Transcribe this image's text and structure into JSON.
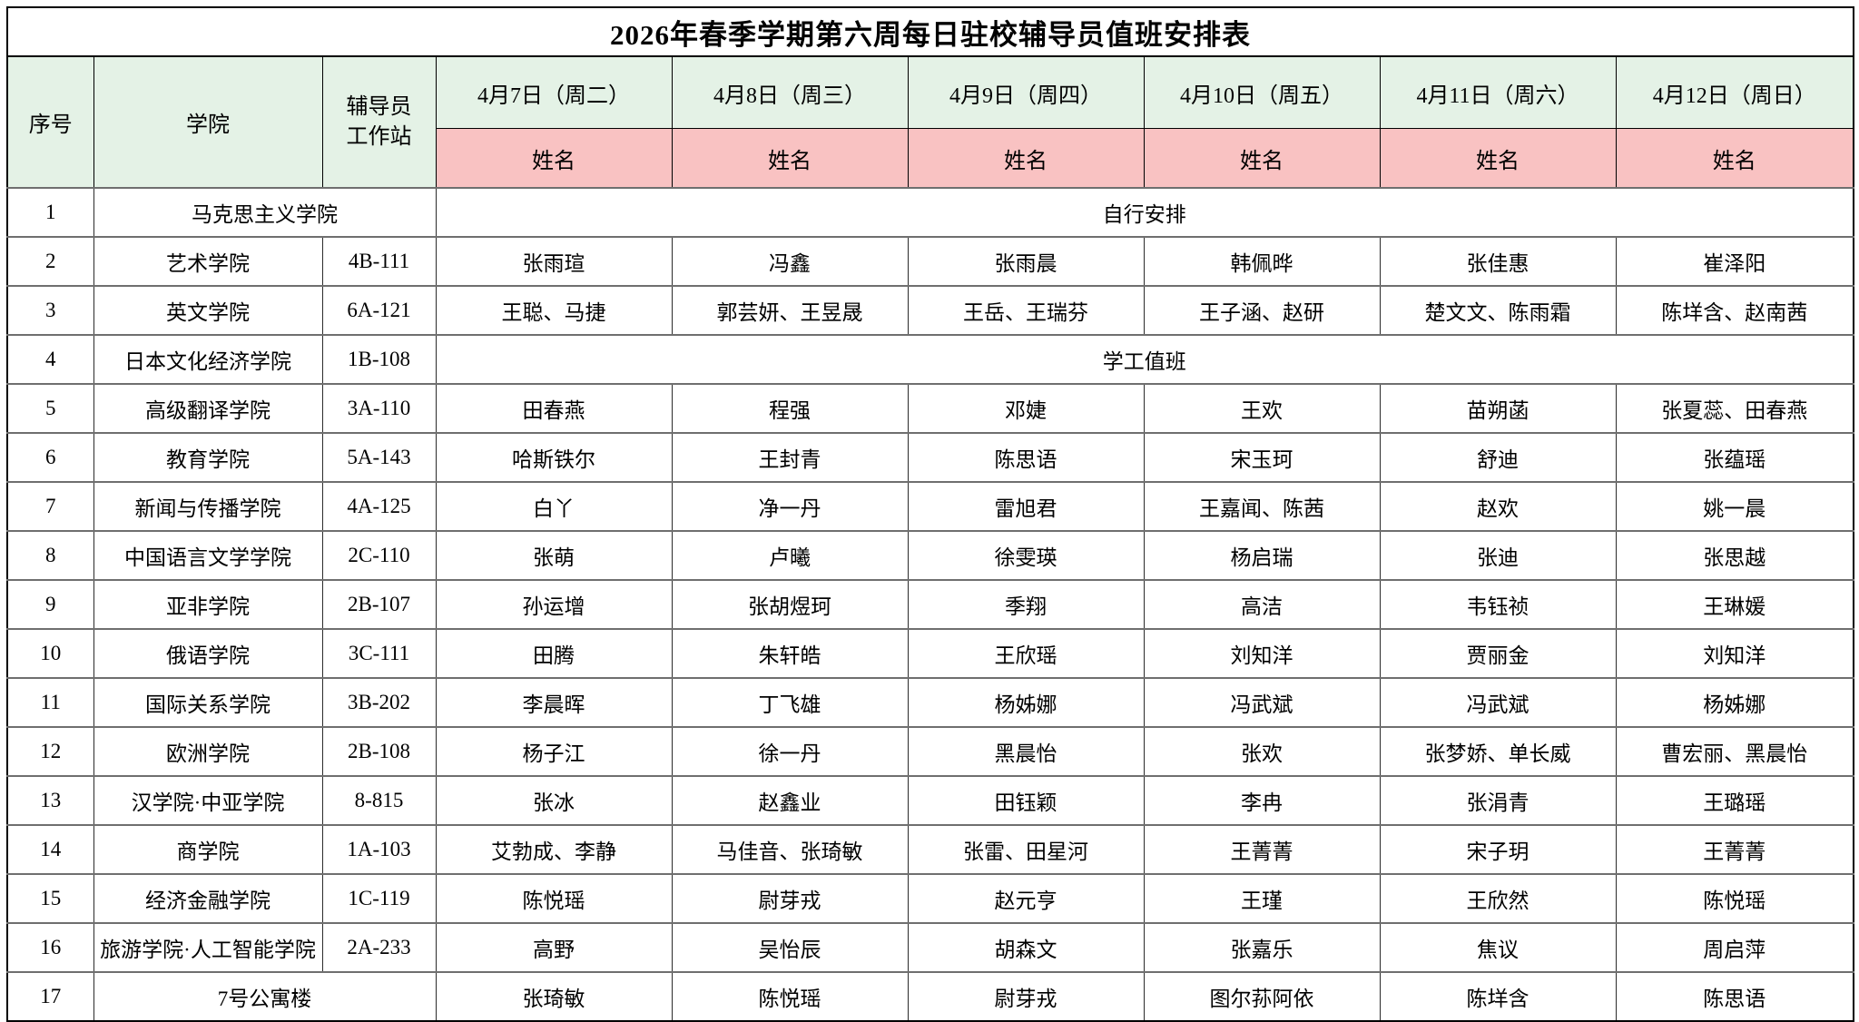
{
  "title": "2026年春季学期第六周每日驻校辅导员值班安排表",
  "header": {
    "no_label": "序号",
    "college_label": "学院",
    "station_label": "辅导员\n工作站",
    "dates": [
      "4月7日（周二）",
      "4月8日（周三）",
      "4月9日（周四）",
      "4月10日（周五）",
      "4月11日（周六）",
      "4月12日（周日）"
    ],
    "name_label": "姓名"
  },
  "colors": {
    "header_green": "#e4f2e6",
    "name_row_pink": "#f9c2c2",
    "border_dark": "#000000",
    "row_divider_gray": "#6f6f6f"
  },
  "rows": [
    {
      "no": "1",
      "college": "马克思主义学院",
      "college_span": 2,
      "note": "自行安排"
    },
    {
      "no": "2",
      "college": "艺术学院",
      "station": "4B-111",
      "names": [
        "张雨瑄",
        "冯鑫",
        "张雨晨",
        "韩佩晔",
        "张佳惠",
        "崔泽阳"
      ]
    },
    {
      "no": "3",
      "college": "英文学院",
      "station": "6A-121",
      "names": [
        "王聪、马捷",
        "郭芸妍、王昱晟",
        "王岳、王瑞芬",
        "王子涵、赵研",
        "楚文文、陈雨霜",
        "陈垟含、赵南茜"
      ]
    },
    {
      "no": "4",
      "college": "日本文化经济学院",
      "station": "1B-108",
      "note": "学工值班"
    },
    {
      "no": "5",
      "college": "高级翻译学院",
      "station": "3A-110",
      "names": [
        "田春燕",
        "程强",
        "邓婕",
        "王欢",
        "苗朔菡",
        "张夏蕊、田春燕"
      ]
    },
    {
      "no": "6",
      "college": "教育学院",
      "station": "5A-143",
      "names": [
        "哈斯铁尔",
        "王封青",
        "陈思语",
        "宋玉珂",
        "舒迪",
        "张蕴瑶"
      ]
    },
    {
      "no": "7",
      "college": "新闻与传播学院",
      "station": "4A-125",
      "names": [
        "白丫",
        "净一丹",
        "雷旭君",
        "王嘉闻、陈茜",
        "赵欢",
        "姚一晨"
      ]
    },
    {
      "no": "8",
      "college": "中国语言文学学院",
      "station": "2C-110",
      "names": [
        "张萌",
        "卢曦",
        "徐雯瑛",
        "杨启瑞",
        "张迪",
        "张思越"
      ]
    },
    {
      "no": "9",
      "college": "亚非学院",
      "station": "2B-107",
      "names": [
        "孙运增",
        "张胡煜珂",
        "季翔",
        "高洁",
        "韦钰祯",
        "王琳媛"
      ]
    },
    {
      "no": "10",
      "college": "俄语学院",
      "station": "3C-111",
      "names": [
        "田腾",
        "朱轩皓",
        "王欣瑶",
        "刘知洋",
        "贾丽金",
        "刘知洋"
      ]
    },
    {
      "no": "11",
      "college": "国际关系学院",
      "station": "3B-202",
      "names": [
        "李晨晖",
        "丁飞雄",
        "杨姊娜",
        "冯武斌",
        "冯武斌",
        "杨姊娜"
      ]
    },
    {
      "no": "12",
      "college": "欧洲学院",
      "station": "2B-108",
      "names": [
        "杨子江",
        "徐一丹",
        "黑晨怡",
        "张欢",
        "张梦娇、单长威",
        "曹宏丽、黑晨怡"
      ]
    },
    {
      "no": "13",
      "college": "汉学院·中亚学院",
      "station": "8-815",
      "names": [
        "张冰",
        "赵鑫业",
        "田钰颖",
        "李冉",
        "张涓青",
        "王璐瑶"
      ]
    },
    {
      "no": "14",
      "college": "商学院",
      "station": "1A-103",
      "names": [
        "艾勃成、李静",
        "马佳音、张琦敏",
        "张雷、田星河",
        "王菁菁",
        "宋子玥",
        "王菁菁"
      ]
    },
    {
      "no": "15",
      "college": "经济金融学院",
      "station": "1C-119",
      "names": [
        "陈悦瑶",
        "尉芽戎",
        "赵元亨",
        "王瑾",
        "王欣然",
        "陈悦瑶"
      ]
    },
    {
      "no": "16",
      "college": "旅游学院·人工智能学院",
      "station": "2A-233",
      "names": [
        "高野",
        "吴怡辰",
        "胡森文",
        "张嘉乐",
        "焦议",
        "周启萍"
      ]
    },
    {
      "no": "17",
      "college": "7号公寓楼",
      "college_span": 2,
      "names": [
        "张琦敏",
        "陈悦瑶",
        "尉芽戎",
        "图尔荪阿依",
        "陈垟含",
        "陈思语"
      ]
    }
  ]
}
